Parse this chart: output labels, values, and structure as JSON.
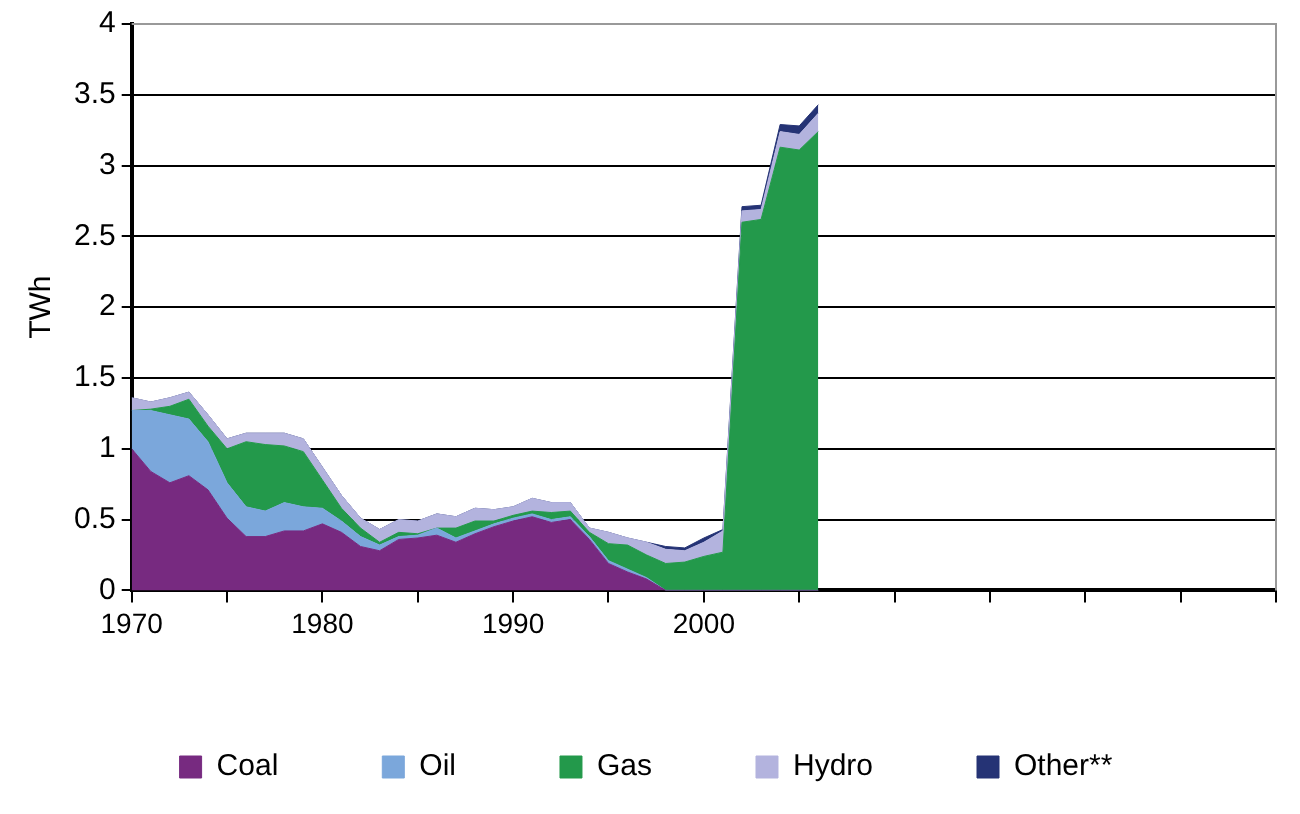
{
  "chart_data": {
    "type": "area",
    "stacked": true,
    "ylabel": "TWh",
    "x": [
      1970,
      1971,
      1972,
      1973,
      1974,
      1975,
      1976,
      1977,
      1978,
      1979,
      1980,
      1981,
      1982,
      1983,
      1984,
      1985,
      1986,
      1987,
      1988,
      1989,
      1990,
      1991,
      1992,
      1993,
      1994,
      1995,
      1996,
      1997,
      1998,
      1999,
      2000,
      2001,
      2002,
      2003,
      2004,
      2005,
      2006
    ],
    "series": [
      {
        "name": "Coal",
        "color": "#772a80",
        "values": [
          1.0,
          0.84,
          0.76,
          0.81,
          0.71,
          0.51,
          0.38,
          0.38,
          0.42,
          0.42,
          0.47,
          0.41,
          0.31,
          0.28,
          0.36,
          0.37,
          0.39,
          0.34,
          0.4,
          0.45,
          0.49,
          0.52,
          0.48,
          0.5,
          0.36,
          0.19,
          0.13,
          0.08,
          0,
          0,
          0,
          0,
          0,
          0,
          0,
          0,
          0
        ]
      },
      {
        "name": "Oil",
        "color": "#7ba7db",
        "values": [
          0.27,
          0.43,
          0.48,
          0.4,
          0.34,
          0.25,
          0.21,
          0.18,
          0.2,
          0.17,
          0.11,
          0.08,
          0.07,
          0.04,
          0.02,
          0.02,
          0.05,
          0.03,
          0.02,
          0.02,
          0.02,
          0.02,
          0.02,
          0.02,
          0.02,
          0.02,
          0.02,
          0.01,
          0,
          0,
          0,
          0,
          0,
          0,
          0,
          0,
          0
        ]
      },
      {
        "name": "Gas",
        "color": "#23994b",
        "values": [
          0,
          0.01,
          0.06,
          0.14,
          0.11,
          0.24,
          0.46,
          0.47,
          0.4,
          0.39,
          0.2,
          0.09,
          0.06,
          0.02,
          0.03,
          0.01,
          0,
          0.07,
          0.07,
          0.02,
          0.02,
          0.02,
          0.05,
          0.04,
          0.03,
          0.12,
          0.17,
          0.16,
          0.19,
          0.2,
          0.24,
          0.27,
          2.6,
          2.62,
          3.13,
          3.11,
          3.24
        ]
      },
      {
        "name": "Hydro",
        "color": "#b3b3de",
        "values": [
          0.09,
          0.05,
          0.06,
          0.05,
          0.08,
          0.07,
          0.06,
          0.08,
          0.09,
          0.09,
          0.09,
          0.09,
          0.07,
          0.09,
          0.09,
          0.09,
          0.1,
          0.08,
          0.09,
          0.08,
          0.06,
          0.09,
          0.07,
          0.06,
          0.03,
          0.08,
          0.05,
          0.09,
          0.1,
          0.08,
          0.1,
          0.15,
          0.08,
          0.07,
          0.11,
          0.11,
          0.13
        ]
      },
      {
        "name": "Other**",
        "color": "#253375",
        "values": [
          0,
          0,
          0,
          0,
          0,
          0,
          0,
          0,
          0,
          0,
          0,
          0,
          0,
          0,
          0,
          0,
          0,
          0,
          0,
          0,
          0,
          0,
          0,
          0,
          0,
          0,
          0,
          0,
          0.02,
          0.02,
          0.03,
          0.01,
          0.03,
          0.03,
          0.05,
          0.06,
          0.06
        ]
      }
    ],
    "xlim": [
      1970,
      2030
    ],
    "xticks": [
      1970,
      {
        "value": 1975,
        "label": null
      },
      1980,
      {
        "value": 1985,
        "label": null
      },
      1990,
      {
        "value": 1995,
        "label": null
      },
      2000,
      {
        "value": 2005,
        "label": null
      },
      {
        "value": 2010,
        "label": null
      },
      {
        "value": 2015,
        "label": null
      },
      {
        "value": 2020,
        "label": null
      },
      {
        "value": 2025,
        "label": null
      },
      {
        "value": 2030,
        "label": null
      }
    ],
    "ylim": [
      0,
      4
    ],
    "yticks": [
      0,
      0.5,
      1,
      1.5,
      2,
      2.5,
      3,
      3.5,
      4
    ],
    "grid": "y",
    "legend": "bottom"
  }
}
